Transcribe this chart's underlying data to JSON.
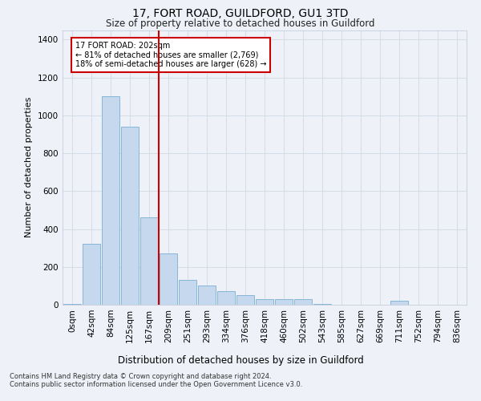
{
  "title": "17, FORT ROAD, GUILDFORD, GU1 3TD",
  "subtitle": "Size of property relative to detached houses in Guildford",
  "xlabel": "Distribution of detached houses by size in Guildford",
  "ylabel": "Number of detached properties",
  "categories": [
    "0sqm",
    "42sqm",
    "84sqm",
    "125sqm",
    "167sqm",
    "209sqm",
    "251sqm",
    "293sqm",
    "334sqm",
    "376sqm",
    "418sqm",
    "460sqm",
    "502sqm",
    "543sqm",
    "585sqm",
    "627sqm",
    "669sqm",
    "711sqm",
    "752sqm",
    "794sqm",
    "836sqm"
  ],
  "values": [
    5,
    320,
    1100,
    940,
    460,
    270,
    130,
    100,
    70,
    50,
    30,
    30,
    30,
    5,
    0,
    0,
    0,
    20,
    0,
    0,
    0
  ],
  "bar_color": "#c5d8ee",
  "bar_edge_color": "#7aafd4",
  "vline_color": "#cc0000",
  "vline_x_idx": 5,
  "ylim": [
    0,
    1450
  ],
  "yticks": [
    0,
    200,
    400,
    600,
    800,
    1000,
    1200,
    1400
  ],
  "annotation_text": "17 FORT ROAD: 202sqm\n← 81% of detached houses are smaller (2,769)\n18% of semi-detached houses are larger (628) →",
  "annotation_box_color": "#ffffff",
  "annotation_box_edge": "#cc0000",
  "footnote1": "Contains HM Land Registry data © Crown copyright and database right 2024.",
  "footnote2": "Contains public sector information licensed under the Open Government Licence v3.0.",
  "grid_color": "#d4dce8",
  "background_color": "#eef2f8",
  "title_fontsize": 10,
  "subtitle_fontsize": 8.5,
  "ylabel_fontsize": 8,
  "xlabel_fontsize": 8.5,
  "tick_fontsize": 7.5,
  "annotation_fontsize": 7,
  "footnote_fontsize": 6
}
